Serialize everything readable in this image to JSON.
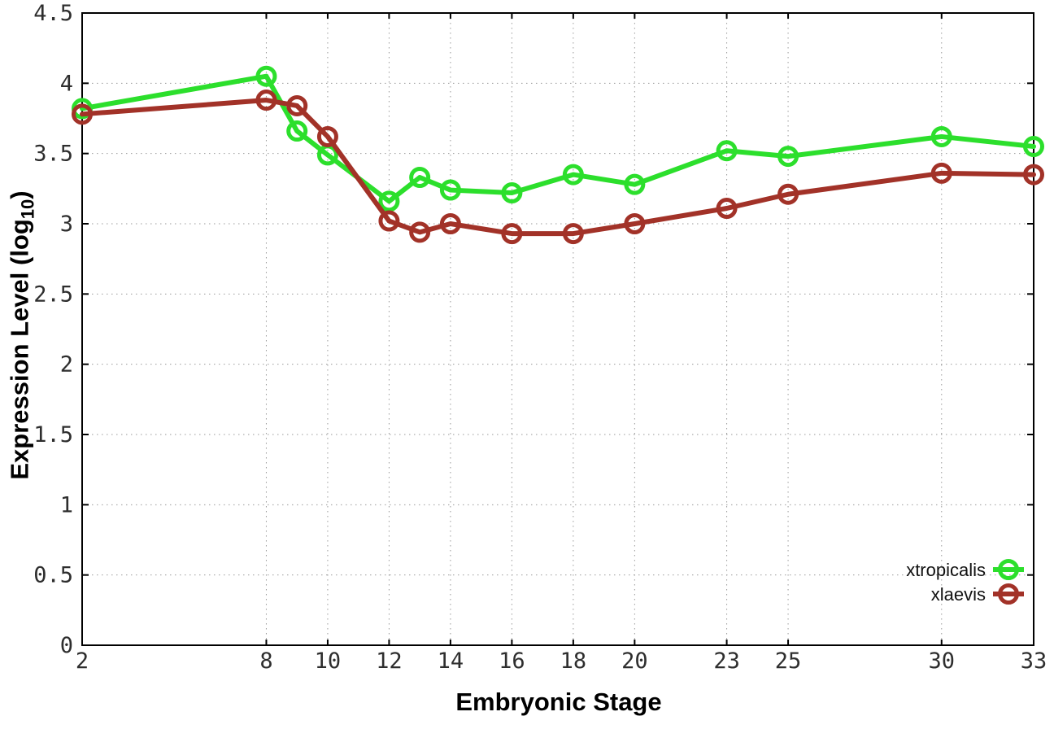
{
  "page": {
    "background": "#ffffff"
  },
  "chart_data": {
    "type": "line",
    "title": "",
    "xlabel": "Embryonic Stage",
    "ylabel": "Expression Level (log10)",
    "ylabel_parts": {
      "prefix": "Expression Level (log",
      "sub": "10",
      "suffix": ")"
    },
    "xlim": [
      2,
      33
    ],
    "ylim": [
      0,
      4.5
    ],
    "xticks": [
      2,
      8,
      10,
      12,
      14,
      16,
      18,
      20,
      23,
      25,
      30,
      33
    ],
    "yticks": [
      0,
      0.5,
      1,
      1.5,
      2,
      2.5,
      3,
      3.5,
      4,
      4.5
    ],
    "grid": true,
    "grid_style": "dotted",
    "legend_position": "bottom-right",
    "marker": "open-circle",
    "x": [
      2,
      8,
      9,
      10,
      12,
      13,
      14,
      16,
      18,
      20,
      23,
      25,
      30,
      33
    ],
    "series": [
      {
        "name": "xtropicalis",
        "color": "#2CDF2C",
        "values": [
          3.82,
          4.05,
          3.66,
          3.49,
          3.16,
          3.33,
          3.24,
          3.22,
          3.35,
          3.28,
          3.52,
          3.48,
          3.62,
          3.55
        ]
      },
      {
        "name": "xlaevis",
        "color": "#A23228",
        "values": [
          3.78,
          3.88,
          3.84,
          3.62,
          3.02,
          2.94,
          3.0,
          2.93,
          2.93,
          3.0,
          3.11,
          3.21,
          3.36,
          3.35
        ]
      }
    ],
    "colors": {
      "border": "#000000",
      "grid": "#9a9a9a",
      "tick_text": "#2e2e2e"
    }
  }
}
